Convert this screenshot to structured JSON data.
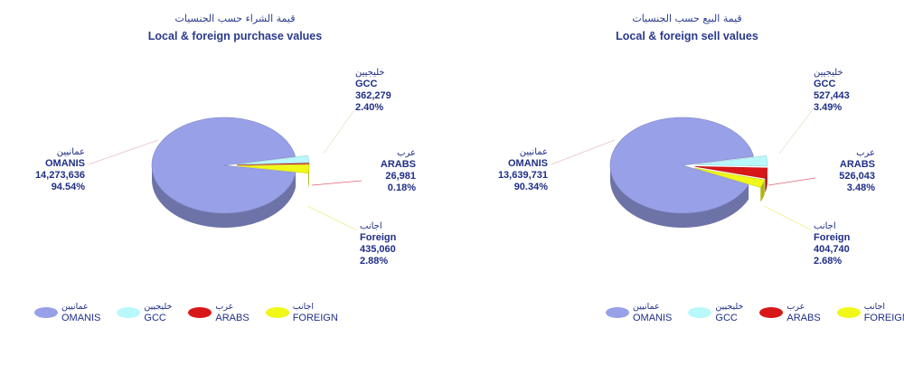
{
  "chart_data": [
    {
      "type": "pie",
      "title_ar": "قيمة الشراء حسب الجنسيات",
      "title": "Local & foreign purchase values",
      "slices": [
        {
          "key": "omanis",
          "name_ar": "عمانيين",
          "name": "OMANIS",
          "value_label": "14,273,636",
          "percent_label": "94.54%",
          "value": 14273636,
          "percent": 94.54,
          "color": "#98a0e8"
        },
        {
          "key": "gcc",
          "name_ar": "خليجيين",
          "name": "GCC",
          "value_label": "362,279",
          "percent_label": "2.40%",
          "value": 362279,
          "percent": 2.4,
          "color": "#b8f8fa"
        },
        {
          "key": "arabs",
          "name_ar": "عرب",
          "name": "ARABS",
          "value_label": "26,981",
          "percent_label": "0.18%",
          "value": 26981,
          "percent": 0.18,
          "color": "#d81818"
        },
        {
          "key": "foreign",
          "name_ar": "اجانب",
          "name": "Foreign",
          "value_label": "435,060",
          "percent_label": "2.88%",
          "value": 435060,
          "percent": 2.88,
          "color": "#f0f818"
        }
      ],
      "legend": [
        "OMANIS",
        "GCC",
        "ARABS",
        "FOREIGN"
      ],
      "legend_ar": [
        "عمانيين",
        "خليجيين",
        "عرب",
        "اجانب"
      ]
    },
    {
      "type": "pie",
      "title_ar": "قيمة البيع حسب الجنسيات",
      "title": "Local & foreign sell values",
      "slices": [
        {
          "key": "omanis",
          "name_ar": "عمانيين",
          "name": "OMANIS",
          "value_label": "13,639,731",
          "percent_label": "90.34%",
          "value": 13639731,
          "percent": 90.34,
          "color": "#98a0e8"
        },
        {
          "key": "gcc",
          "name_ar": "خليجيين",
          "name": "GCC",
          "value_label": "527,443",
          "percent_label": "3.49%",
          "value": 527443,
          "percent": 3.49,
          "color": "#b8f8fa"
        },
        {
          "key": "arabs",
          "name_ar": "عرب",
          "name": "ARABS",
          "value_label": "526,043",
          "percent_label": "3.48%",
          "value": 526043,
          "percent": 3.48,
          "color": "#d81818"
        },
        {
          "key": "foreign",
          "name_ar": "اجانب",
          "name": "Foreign",
          "value_label": "404,740",
          "percent_label": "2.68%",
          "value": 404740,
          "percent": 2.68,
          "color": "#f0f818"
        }
      ],
      "legend": [
        "OMANIS",
        "GCC",
        "ARABS",
        "FOREIGN"
      ],
      "legend_ar": [
        "عمانيين",
        "خليجيين",
        "عرب",
        "اجانب"
      ]
    }
  ]
}
